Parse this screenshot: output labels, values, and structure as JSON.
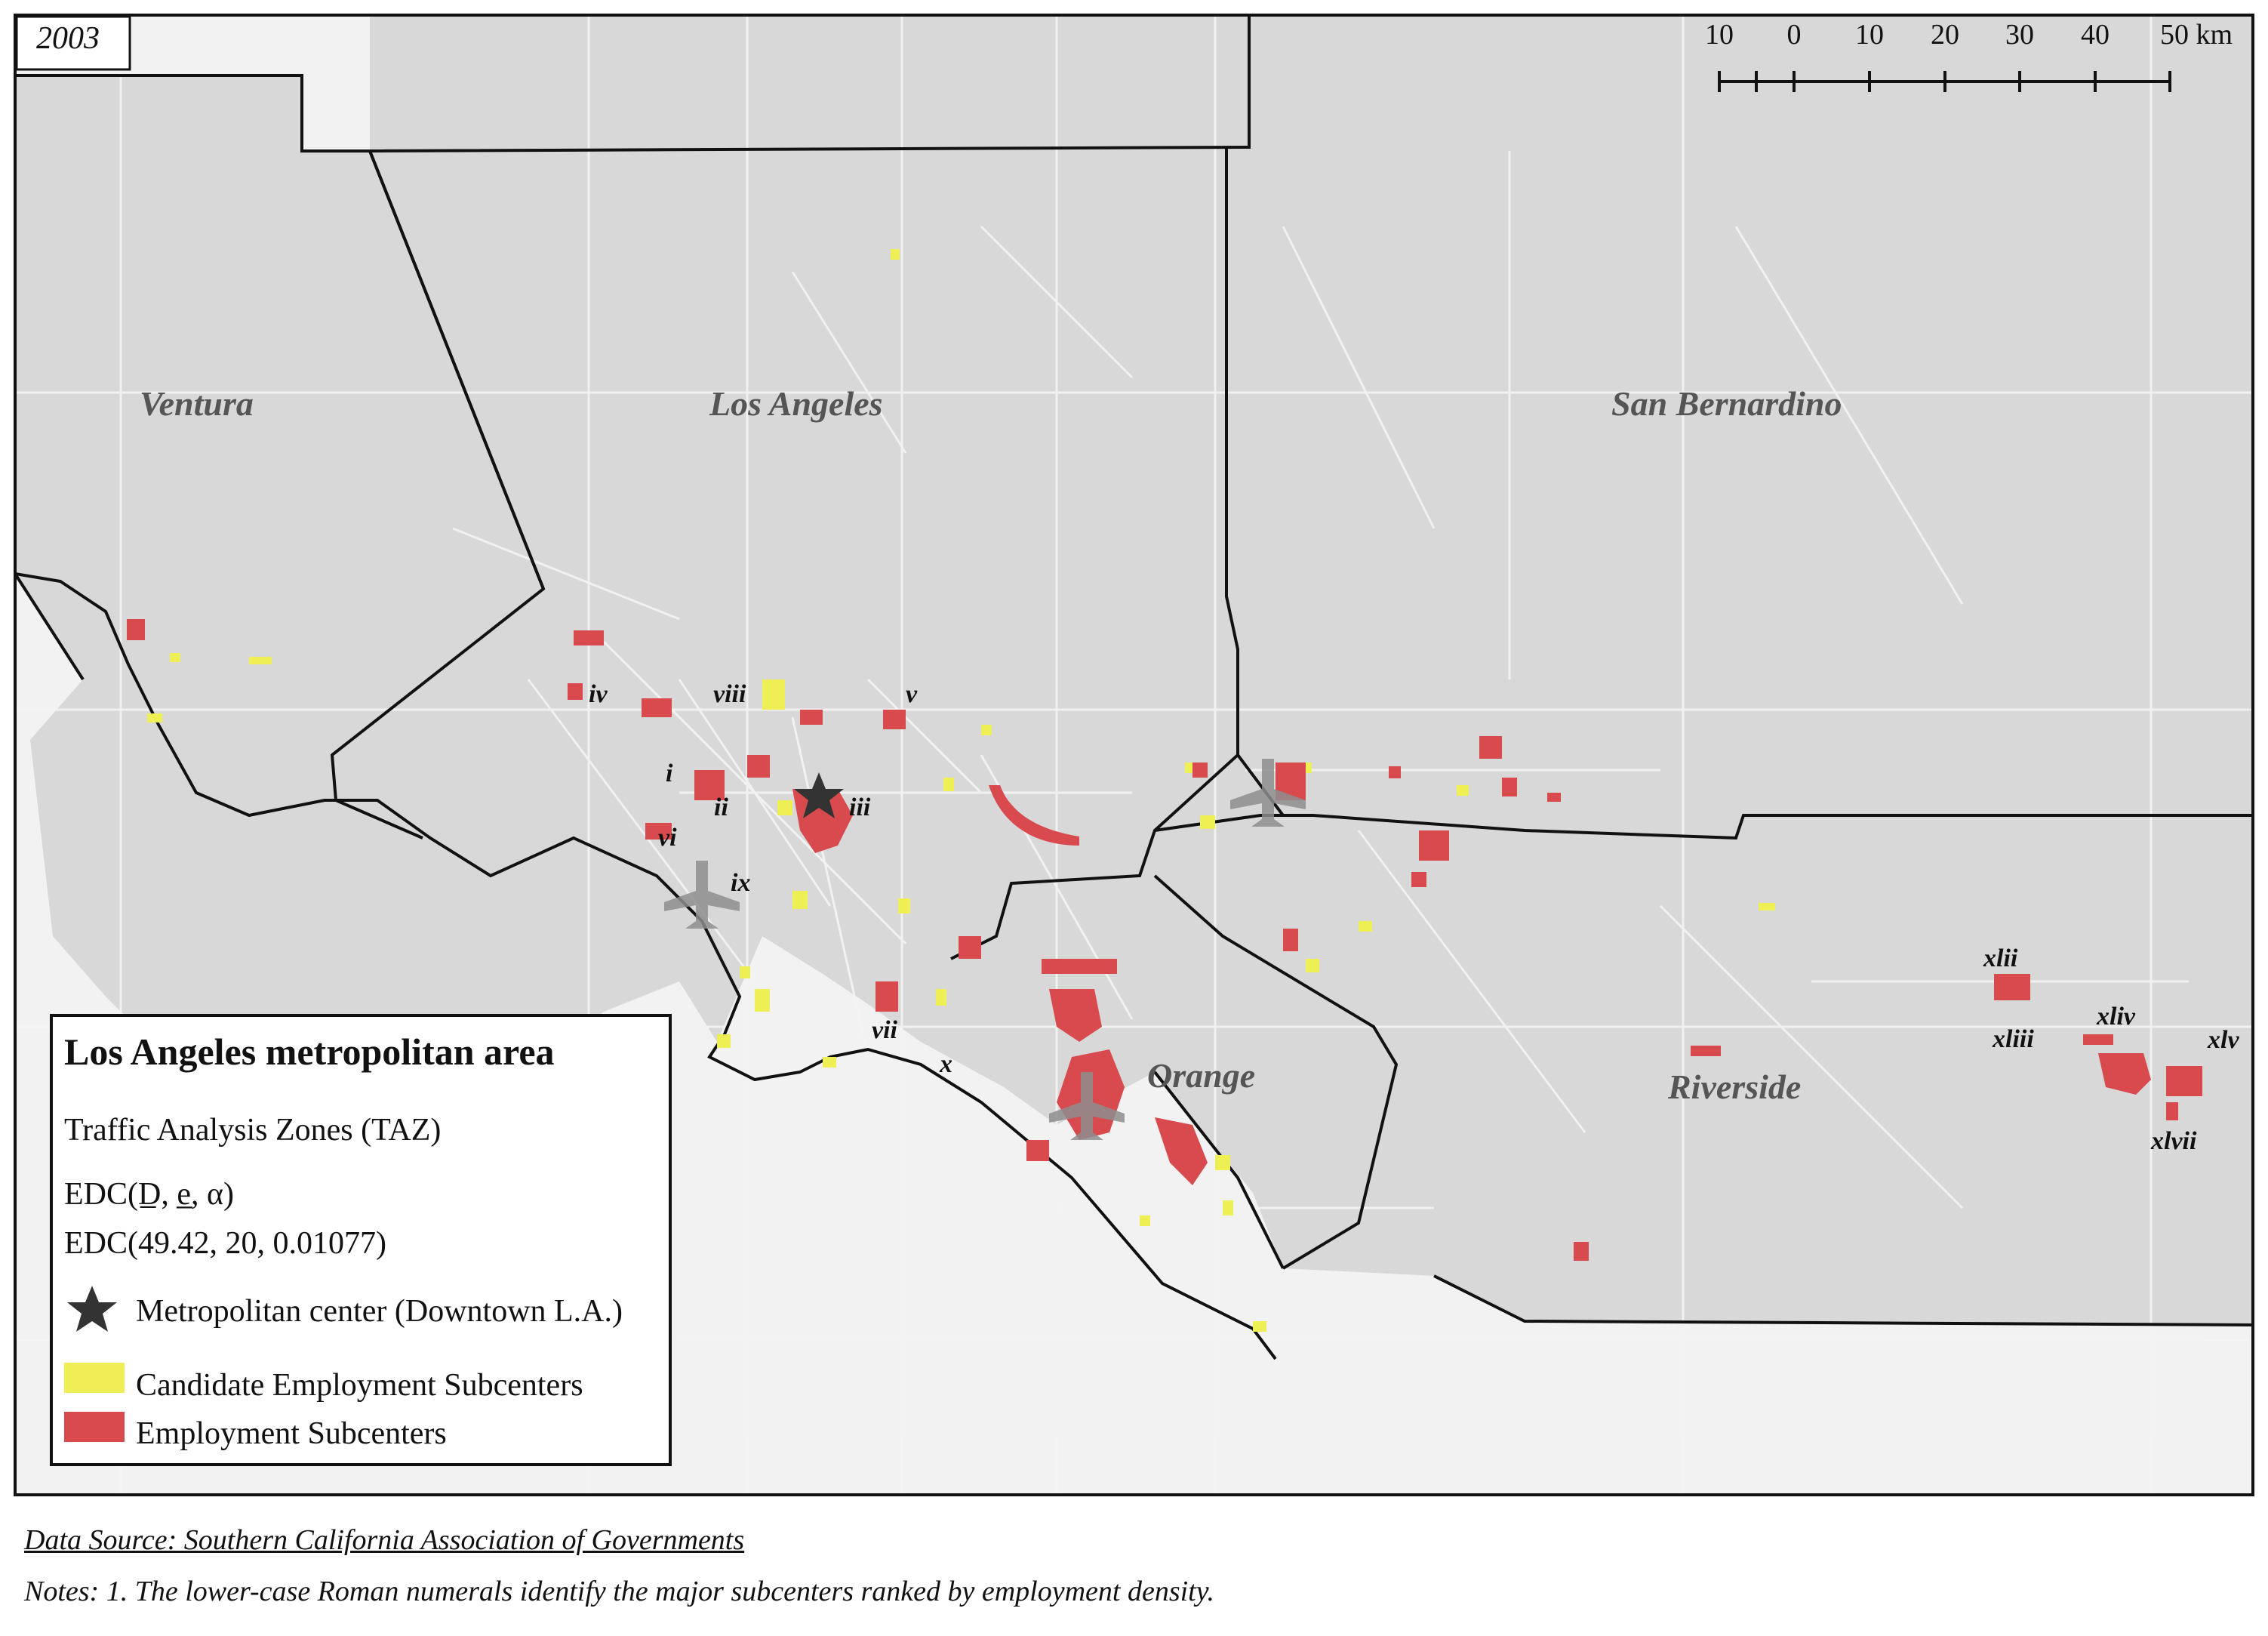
{
  "year": "2003",
  "counties": [
    "Ventura",
    "Los Angeles",
    "San Bernardino",
    "Orange",
    "Riverside"
  ],
  "scale_bar": {
    "ticks": [
      "10",
      "0",
      "10",
      "20",
      "30",
      "40",
      "50 km"
    ]
  },
  "subcenter_labels": [
    "i",
    "ii",
    "iii",
    "iv",
    "v",
    "vi",
    "vii",
    "viii",
    "ix",
    "x",
    "xlii",
    "xliii",
    "xliv",
    "xlv",
    "xlvii"
  ],
  "legend": {
    "title": "Los Angeles metropolitan area",
    "subtitle": "Traffic Analysis Zones (TAZ)",
    "edc_formula": "EDC(D̲, e̲, α)",
    "edc_values": "EDC(49.42, 20, 0.01077)",
    "center_label": "Metropolitan center (Downtown L.A.)",
    "candidate_label": "Candidate Employment Subcenters",
    "subcenter_label": "Employment Subcenters"
  },
  "colors": {
    "land": "#d8d8d8",
    "sea": "#f2f2f2",
    "taz_lines": "#f7f7f7",
    "candidate": "#eeee55",
    "subcenter": "#d94a4f",
    "center_star": "#333333"
  },
  "footer": {
    "source": "Data Source: Southern California Association of Governments",
    "notes": "Notes: 1. The lower-case Roman numerals identify the major subcenters ranked by employment density."
  }
}
